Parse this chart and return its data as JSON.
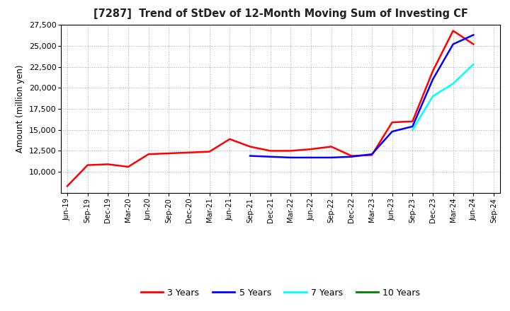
{
  "title": "[7287]  Trend of StDev of 12-Month Moving Sum of Investing CF",
  "ylabel": "Amount (million yen)",
  "ylim": [
    7500,
    27500
  ],
  "yticks": [
    10000,
    12500,
    15000,
    17500,
    20000,
    22500,
    25000,
    27500
  ],
  "background_color": "#ffffff",
  "grid_color": "#aaaaaa",
  "x_labels": [
    "Jun-19",
    "Sep-19",
    "Dec-19",
    "Mar-20",
    "Jun-20",
    "Sep-20",
    "Dec-20",
    "Mar-21",
    "Jun-21",
    "Sep-21",
    "Dec-21",
    "Mar-22",
    "Jun-22",
    "Sep-22",
    "Dec-22",
    "Mar-23",
    "Jun-23",
    "Sep-23",
    "Dec-23",
    "Mar-24",
    "Jun-24",
    "Sep-24"
  ],
  "series": {
    "3 Years": {
      "color": "#ff0000",
      "data": [
        [
          0,
          8300
        ],
        [
          1,
          10800
        ],
        [
          2,
          10900
        ],
        [
          3,
          10600
        ],
        [
          4,
          12100
        ],
        [
          5,
          12200
        ],
        [
          6,
          12300
        ],
        [
          7,
          12400
        ],
        [
          8,
          13900
        ],
        [
          9,
          13000
        ],
        [
          10,
          12500
        ],
        [
          11,
          12500
        ],
        [
          12,
          12700
        ],
        [
          13,
          13000
        ],
        [
          14,
          11900
        ],
        [
          15,
          12000
        ],
        [
          16,
          15900
        ],
        [
          17,
          16000
        ],
        [
          18,
          22000
        ],
        [
          19,
          26800
        ],
        [
          20,
          25200
        ],
        [
          21,
          null
        ]
      ]
    },
    "5 Years": {
      "color": "#0000ff",
      "data": [
        [
          0,
          null
        ],
        [
          1,
          null
        ],
        [
          2,
          null
        ],
        [
          3,
          null
        ],
        [
          4,
          null
        ],
        [
          5,
          null
        ],
        [
          6,
          null
        ],
        [
          7,
          null
        ],
        [
          8,
          null
        ],
        [
          9,
          11900
        ],
        [
          10,
          11800
        ],
        [
          11,
          11700
        ],
        [
          12,
          11700
        ],
        [
          13,
          11700
        ],
        [
          14,
          11800
        ],
        [
          15,
          12100
        ],
        [
          16,
          14800
        ],
        [
          17,
          15400
        ],
        [
          18,
          21000
        ],
        [
          19,
          25200
        ],
        [
          20,
          26300
        ],
        [
          21,
          null
        ]
      ]
    },
    "7 Years": {
      "color": "#00ffff",
      "data": [
        [
          0,
          null
        ],
        [
          1,
          null
        ],
        [
          2,
          null
        ],
        [
          3,
          null
        ],
        [
          4,
          null
        ],
        [
          5,
          null
        ],
        [
          6,
          null
        ],
        [
          7,
          null
        ],
        [
          8,
          null
        ],
        [
          9,
          null
        ],
        [
          10,
          null
        ],
        [
          11,
          null
        ],
        [
          12,
          null
        ],
        [
          13,
          null
        ],
        [
          14,
          null
        ],
        [
          15,
          null
        ],
        [
          16,
          null
        ],
        [
          17,
          15000
        ],
        [
          18,
          19000
        ],
        [
          19,
          20500
        ],
        [
          20,
          22800
        ],
        [
          21,
          null
        ]
      ]
    },
    "10 Years": {
      "color": "#008000",
      "data": [
        [
          0,
          null
        ],
        [
          1,
          null
        ],
        [
          2,
          null
        ],
        [
          3,
          null
        ],
        [
          4,
          null
        ],
        [
          5,
          null
        ],
        [
          6,
          null
        ],
        [
          7,
          null
        ],
        [
          8,
          null
        ],
        [
          9,
          null
        ],
        [
          10,
          null
        ],
        [
          11,
          null
        ],
        [
          12,
          null
        ],
        [
          13,
          null
        ],
        [
          14,
          null
        ],
        [
          15,
          null
        ],
        [
          16,
          null
        ],
        [
          17,
          null
        ],
        [
          18,
          null
        ],
        [
          19,
          null
        ],
        [
          20,
          null
        ],
        [
          21,
          null
        ]
      ]
    }
  },
  "legend_labels": [
    "3 Years",
    "5 Years",
    "7 Years",
    "10 Years"
  ],
  "legend_colors": [
    "#ff0000",
    "#0000ff",
    "#00ffff",
    "#008000"
  ]
}
